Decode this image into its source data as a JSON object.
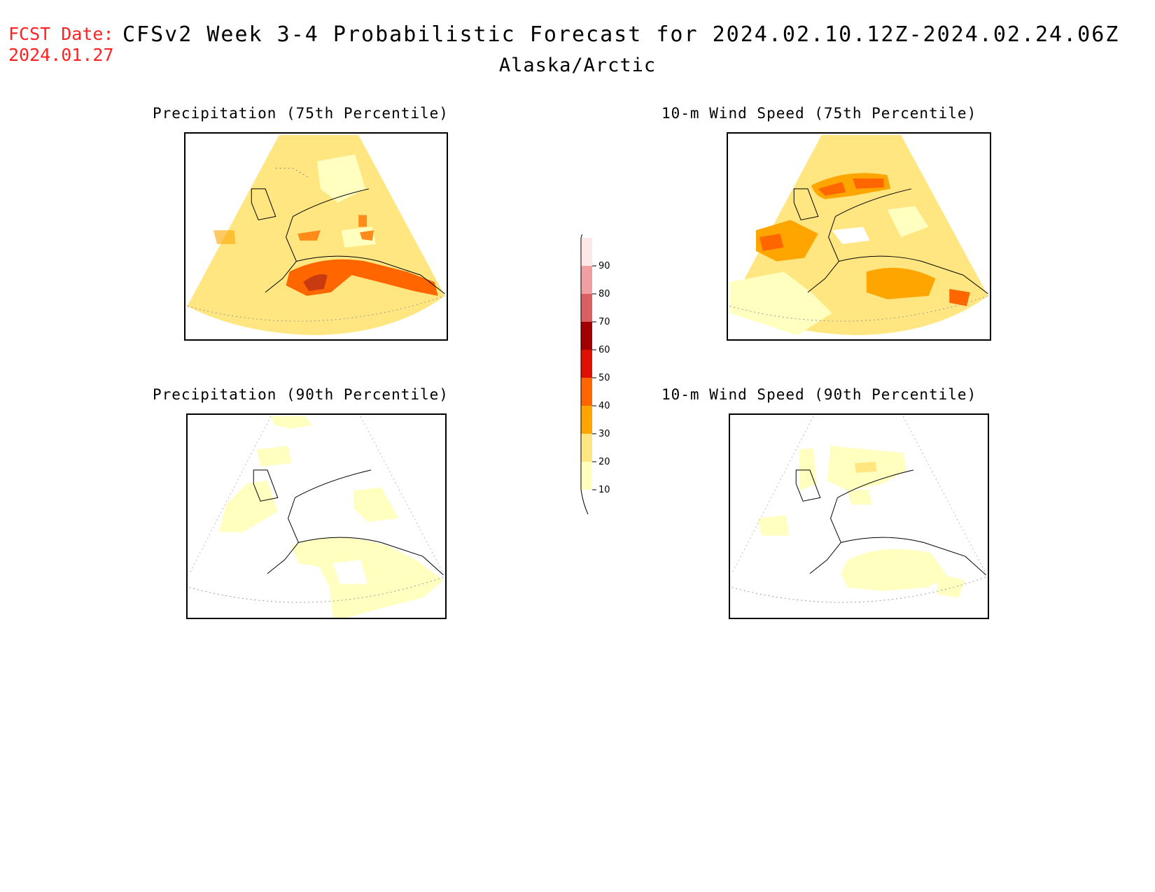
{
  "header": {
    "fcst_label": "FCST Date:",
    "fcst_date": "2024.01.27",
    "title": "CFSv2 Week 3-4 Probabilistic Forecast for 2024.02.10.12Z-2024.02.24.06Z",
    "region": "Alaska/Arctic"
  },
  "panels": [
    {
      "title": "Precipitation (75th Percentile)"
    },
    {
      "title": "10-m Wind Speed (75th Percentile)"
    },
    {
      "title": "Precipitation (90th Percentile)"
    },
    {
      "title": "10-m Wind Speed (90th Percentile)"
    }
  ],
  "colorbar": {
    "levels": [
      "10",
      "20",
      "30",
      "40",
      "50",
      "60",
      "70",
      "80",
      "90"
    ],
    "colors": [
      "#ffffc0",
      "#ffe680",
      "#ffa500",
      "#ff6600",
      "#e01000",
      "#a00000",
      "#d86060",
      "#f0a0a0",
      "#fde8e8"
    ]
  }
}
